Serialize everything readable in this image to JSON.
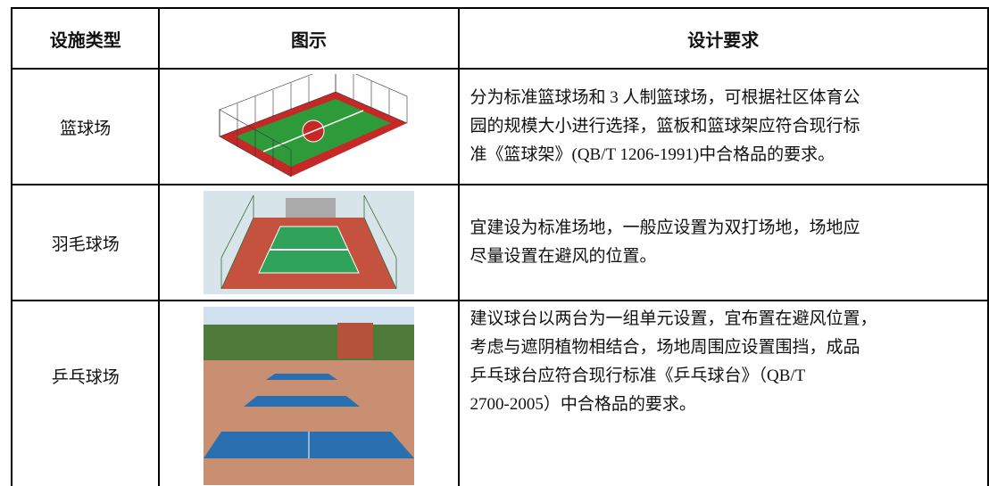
{
  "table": {
    "header": [
      "设施类型",
      "图示",
      "设计要求"
    ],
    "rows": [
      {
        "type": "篮球场",
        "description": [
          "分为标准篮球场和 3 人制篮球场，可根据社区体育公",
          "园的规模大小进行选择，篮板和篮球架应符合现行标",
          "准《篮球架》(QB/T 1206-1991)中合格品的要求。"
        ]
      },
      {
        "type": "羽毛球场",
        "description": [
          "宜建设为标准场地，一般应设置为双打场地，场地应",
          "尽量设置在避风的位置。"
        ]
      },
      {
        "type": "乒乓球场",
        "description": [
          "建议球台以两台为一组单元设置，宜布置在避风位置，",
          "考虑与遮阴植物相结合，场地周围应设置围挡，成品",
          "乒乓球台应符合现行标准《乒乓球台》（QB/T",
          "2700-2005）中合格品的要求。"
        ]
      }
    ]
  }
}
